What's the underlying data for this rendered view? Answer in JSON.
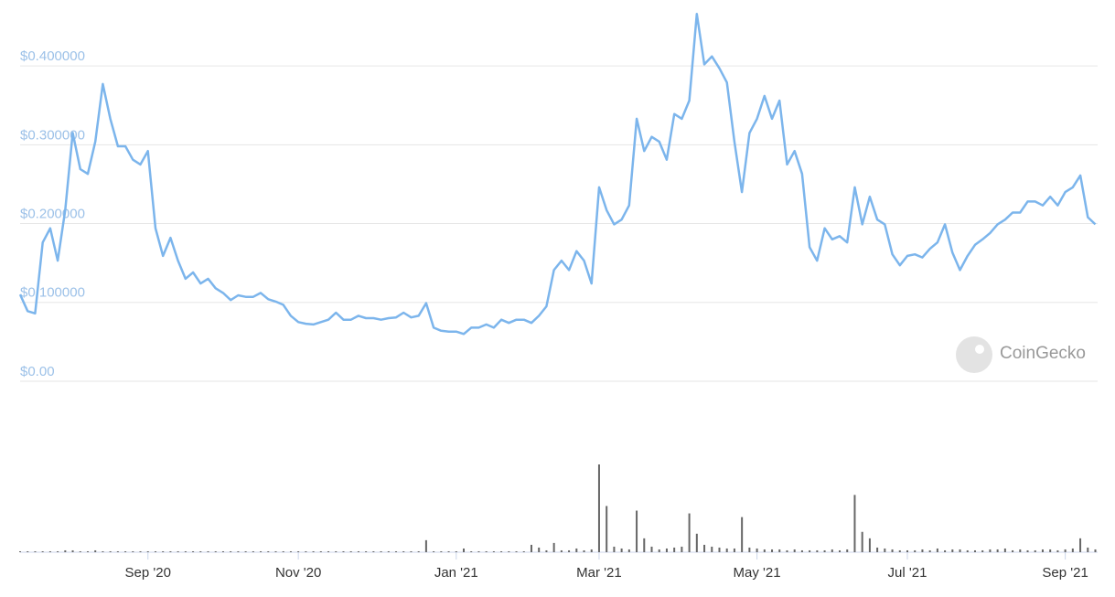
{
  "chart_data": {
    "type": "line",
    "watermark": "CoinGecko",
    "categories": [
      null,
      null,
      null,
      null,
      null,
      null,
      null,
      null,
      null,
      null,
      null,
      null,
      null,
      null,
      null,
      null,
      null,
      "Sep '20",
      null,
      null,
      null,
      null,
      null,
      null,
      null,
      null,
      null,
      null,
      null,
      null,
      null,
      null,
      null,
      null,
      null,
      null,
      null,
      "Nov '20",
      null,
      null,
      null,
      null,
      null,
      null,
      null,
      null,
      null,
      null,
      null,
      null,
      null,
      null,
      null,
      null,
      null,
      null,
      null,
      null,
      "Jan '21",
      null,
      null,
      null,
      null,
      null,
      null,
      null,
      null,
      null,
      null,
      null,
      null,
      null,
      null,
      null,
      null,
      null,
      null,
      "Mar '21",
      null,
      null,
      null,
      null,
      null,
      null,
      null,
      null,
      null,
      null,
      null,
      null,
      null,
      null,
      null,
      null,
      null,
      null,
      null,
      null,
      "May '21",
      null,
      null,
      null,
      null,
      null,
      null,
      null,
      null,
      null,
      null,
      null,
      null,
      null,
      null,
      null,
      null,
      null,
      null,
      null,
      "Jul '21",
      null,
      null,
      null,
      null,
      null,
      null,
      null,
      null,
      null,
      null,
      null,
      null,
      null,
      null,
      null,
      null,
      null,
      null,
      null,
      null,
      "Sep '21",
      null,
      null,
      null,
      null
    ],
    "series": [
      {
        "color": "#7cb5ec",
        "values": [
          0.11,
          0.089,
          0.086,
          0.176,
          0.194,
          0.153,
          0.217,
          0.315,
          0.269,
          0.263,
          0.304,
          0.377,
          0.333,
          0.298,
          0.298,
          0.281,
          0.275,
          0.292,
          0.194,
          0.159,
          0.182,
          0.153,
          0.13,
          0.138,
          0.124,
          0.13,
          0.118,
          0.112,
          0.103,
          0.109,
          0.107,
          0.107,
          0.112,
          0.104,
          0.101,
          0.097,
          0.083,
          0.075,
          0.073,
          0.072,
          0.075,
          0.078,
          0.087,
          0.078,
          0.078,
          0.083,
          0.08,
          0.08,
          0.078,
          0.08,
          0.081,
          0.087,
          0.081,
          0.083,
          0.099,
          0.068,
          0.064,
          0.063,
          0.063,
          0.06,
          0.068,
          0.068,
          0.072,
          0.068,
          0.078,
          0.074,
          0.078,
          0.078,
          0.074,
          0.083,
          0.095,
          0.141,
          0.153,
          0.141,
          0.165,
          0.153,
          0.124,
          0.246,
          0.217,
          0.199,
          0.205,
          0.223,
          0.333,
          0.292,
          0.31,
          0.304,
          0.281,
          0.339,
          0.333,
          0.356,
          0.466,
          0.402,
          0.412,
          0.397,
          0.379,
          0.304,
          0.24,
          0.315,
          0.333,
          0.362,
          0.333,
          0.356,
          0.275,
          0.292,
          0.263,
          0.17,
          0.153,
          0.194,
          0.18,
          0.184,
          0.176,
          0.246,
          0.199,
          0.234,
          0.205,
          0.199,
          0.161,
          0.147,
          0.159,
          0.161,
          0.157,
          0.168,
          0.176,
          0.199,
          0.163,
          0.141,
          0.159,
          0.173,
          0.18,
          0.188,
          0.199,
          0.205,
          0.214,
          0.214,
          0.228,
          0.228,
          0.223,
          0.234,
          0.223,
          0.24,
          0.246,
          0.261,
          0.208,
          0.199
        ]
      },
      {
        "color": "#666666",
        "values": [
          1,
          1,
          1,
          1,
          1,
          1,
          2,
          2,
          1,
          1,
          2,
          1,
          1,
          1,
          1,
          1,
          1,
          1,
          1,
          1,
          1,
          1,
          1,
          1,
          1,
          1,
          1,
          1,
          1,
          1,
          1,
          1,
          1,
          1,
          1,
          1,
          1,
          1,
          1,
          1,
          1,
          1,
          1,
          1,
          1,
          1,
          1,
          1,
          1,
          1,
          1,
          1,
          1,
          1,
          13,
          1,
          1,
          1,
          1,
          4,
          1,
          1,
          1,
          1,
          1,
          1,
          1,
          1,
          8,
          5,
          2,
          10,
          2,
          2,
          4,
          2,
          3,
          95,
          50,
          6,
          4,
          3,
          45,
          15,
          6,
          3,
          4,
          5,
          6,
          42,
          20,
          8,
          6,
          5,
          4,
          4,
          38,
          5,
          4,
          3,
          3,
          3,
          2,
          3,
          2,
          2,
          2,
          2,
          3,
          2,
          3,
          62,
          22,
          15,
          5,
          4,
          3,
          2,
          2,
          2,
          3,
          2,
          4,
          2,
          3,
          3,
          2,
          2,
          2,
          3,
          3,
          4,
          2,
          3,
          2,
          2,
          3,
          3,
          2,
          3,
          4,
          15,
          5,
          3
        ]
      }
    ],
    "ylim": [
      0,
      0.472
    ],
    "yticks": [
      {
        "value": 0,
        "label": "$0.00"
      },
      {
        "value": 0.1,
        "label": "$0.100000"
      },
      {
        "value": 0.2,
        "label": "$0.200000"
      },
      {
        "value": 0.3,
        "label": "$0.300000"
      },
      {
        "value": 0.4,
        "label": "$0.400000"
      }
    ],
    "grid": true
  }
}
